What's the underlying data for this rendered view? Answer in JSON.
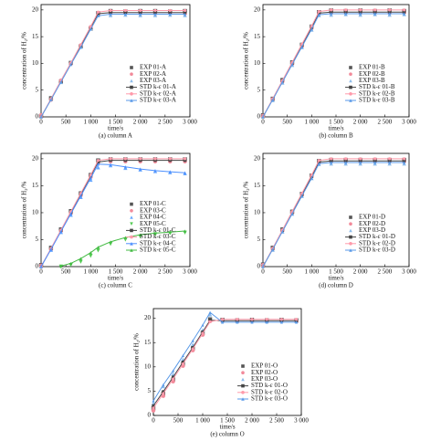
{
  "chart_data": [
    {
      "type": "line",
      "caption": "(a) column A",
      "xlabel": "time/s",
      "ylabel": "concentration of H₂/%",
      "xlim": [
        0,
        3000
      ],
      "ylim": [
        0,
        21
      ],
      "legend": "lower right",
      "grid": false,
      "xticks": [
        0,
        500,
        {
          "value": 1000,
          "label": "1 000"
        },
        {
          "value": 1500,
          "label": "1 500"
        },
        {
          "value": 2000,
          "label": "2 000"
        },
        {
          "value": 2500,
          "label": "2 500"
        },
        {
          "value": 3000,
          "label": "3 000"
        }
      ],
      "yticks": [
        0,
        5,
        10,
        15,
        20
      ],
      "x": [
        0,
        200,
        400,
        600,
        800,
        1000,
        1150,
        1400,
        1700,
        2000,
        2300,
        2600,
        2900
      ],
      "series": [
        {
          "name": "EXP 01-A",
          "color": "#555555",
          "marker": "square",
          "line": false,
          "values": [
            0.2,
            3.5,
            6.6,
            10.1,
            13.2,
            16.5,
            19.4,
            19.8,
            19.7,
            19.8,
            19.8,
            19.7,
            19.8
          ]
        },
        {
          "name": "EXP 02-A",
          "color": "#f28a9a",
          "marker": "circle",
          "line": false,
          "values": [
            0.3,
            3.2,
            6.8,
            9.9,
            13.4,
            16.8,
            19.1,
            19.3,
            19.4,
            19.3,
            19.3,
            19.4,
            19.3
          ]
        },
        {
          "name": "EXP 03-A",
          "color": "#8fbcea",
          "marker": "triangle",
          "line": false,
          "values": [
            0.1,
            3.4,
            6.5,
            10.2,
            13.1,
            16.6,
            19.0,
            19.0,
            19.1,
            19.0,
            19.0,
            19.1,
            19.0
          ]
        },
        {
          "name": "STD k-ε 01-A",
          "color": "#444444",
          "marker": "square",
          "line": true,
          "values": [
            0,
            3.3,
            6.7,
            10.0,
            13.3,
            16.7,
            19.3,
            19.5,
            19.5,
            19.5,
            19.5,
            19.5,
            19.5
          ]
        },
        {
          "name": "STD k-ε 02-A",
          "color": "#ff9aaa",
          "marker": "circle",
          "line": true,
          "values": [
            0,
            3.4,
            6.8,
            10.1,
            13.5,
            16.9,
            19.6,
            19.9,
            19.9,
            19.9,
            19.9,
            19.9,
            19.9
          ]
        },
        {
          "name": "STD k-ε 03-A",
          "color": "#5a9ae8",
          "marker": "triangle",
          "line": true,
          "values": [
            0,
            3.2,
            6.5,
            9.8,
            13.0,
            16.4,
            18.9,
            19.2,
            19.2,
            19.2,
            19.2,
            19.2,
            19.2
          ]
        }
      ]
    },
    {
      "type": "line",
      "caption": "(b) column B",
      "xlabel": "time/s",
      "ylabel": "concentration of H₂/%",
      "xlim": [
        0,
        3000
      ],
      "ylim": [
        0,
        21
      ],
      "legend": "lower right",
      "grid": false,
      "xticks": [
        0,
        500,
        {
          "value": 1000,
          "label": "1 000"
        },
        {
          "value": 1500,
          "label": "1 500"
        },
        {
          "value": 2000,
          "label": "2 000"
        },
        {
          "value": 2500,
          "label": "2 500"
        },
        {
          "value": 3000,
          "label": "3 000"
        }
      ],
      "yticks": [
        0,
        5,
        10,
        15,
        20
      ],
      "x": [
        0,
        200,
        400,
        600,
        800,
        1000,
        1150,
        1400,
        1700,
        2000,
        2300,
        2600,
        2900
      ],
      "series": [
        {
          "name": "EXP 01-B",
          "color": "#555555",
          "marker": "square",
          "line": false,
          "values": [
            0.3,
            3.4,
            6.9,
            10.2,
            13.5,
            16.9,
            19.6,
            19.9,
            19.8,
            19.9,
            19.8,
            19.9,
            19.8
          ]
        },
        {
          "name": "EXP 02-B",
          "color": "#f28a9a",
          "marker": "circle",
          "line": false,
          "values": [
            0.2,
            3.3,
            6.6,
            9.9,
            13.2,
            16.6,
            19.3,
            19.4,
            19.5,
            19.4,
            19.5,
            19.4,
            19.5
          ]
        },
        {
          "name": "EXP 03-B",
          "color": "#8fbcea",
          "marker": "triangle",
          "line": false,
          "values": [
            0.1,
            3.1,
            6.4,
            9.7,
            13.0,
            16.3,
            19.0,
            19.1,
            19.2,
            19.1,
            19.2,
            19.1,
            19.2
          ]
        },
        {
          "name": "STD k-ε 01-B",
          "color": "#444444",
          "marker": "square",
          "line": true,
          "values": [
            0,
            3.3,
            6.7,
            10.0,
            13.3,
            16.7,
            19.4,
            19.6,
            19.6,
            19.6,
            19.6,
            19.6,
            19.6
          ]
        },
        {
          "name": "STD k-ε 02-B",
          "color": "#ff9aaa",
          "marker": "circle",
          "line": true,
          "values": [
            0,
            3.4,
            6.8,
            10.2,
            13.6,
            17.0,
            19.7,
            20.0,
            20.0,
            20.0,
            20.0,
            20.0,
            20.0
          ]
        },
        {
          "name": "STD k-ε 03-B",
          "color": "#5a9ae8",
          "marker": "triangle",
          "line": true,
          "values": [
            0,
            3.2,
            6.5,
            9.8,
            13.1,
            16.4,
            19.1,
            19.3,
            19.3,
            19.3,
            19.3,
            19.3,
            19.3
          ]
        }
      ]
    },
    {
      "type": "line",
      "caption": "(c) column C",
      "xlabel": "time/s",
      "ylabel": "concentration of H₂/%",
      "xlim": [
        0,
        3000
      ],
      "ylim": [
        0,
        21
      ],
      "legend": "lower right",
      "grid": false,
      "xticks": [
        0,
        500,
        {
          "value": 1000,
          "label": "1 000"
        },
        {
          "value": 1500,
          "label": "1 500"
        },
        {
          "value": 2000,
          "label": "2 000"
        },
        {
          "value": 2500,
          "label": "2 500"
        },
        {
          "value": 3000,
          "label": "3 000"
        }
      ],
      "yticks": [
        0,
        5,
        10,
        15,
        20
      ],
      "x": [
        0,
        200,
        400,
        600,
        800,
        1000,
        1150,
        1400,
        1700,
        2000,
        2300,
        2600,
        2900
      ],
      "series": [
        {
          "name": "EXP 01-C",
          "color": "#555555",
          "marker": "square",
          "line": false,
          "values": [
            0.3,
            3.5,
            6.9,
            10.3,
            13.6,
            17.0,
            19.7,
            19.9,
            19.9,
            19.9,
            19.9,
            19.9,
            19.9
          ]
        },
        {
          "name": "EXP 03-C",
          "color": "#f28a9a",
          "marker": "circle",
          "line": false,
          "values": [
            0.2,
            3.2,
            6.6,
            9.9,
            13.2,
            16.6,
            19.3,
            19.5,
            19.5,
            19.5,
            19.5,
            19.5,
            19.5
          ]
        },
        {
          "name": "EXP 04-C",
          "color": "#6aa9ff",
          "marker": "triangle",
          "line": false,
          "values": [
            0.1,
            3.1,
            6.4,
            9.6,
            12.9,
            16.1,
            18.4,
            18.8,
            18.3,
            18.0,
            17.7,
            17.5,
            17.3
          ]
        },
        {
          "name": "EXP 05-C",
          "color": "#55cc55",
          "marker": "triangle-down",
          "line": false,
          "values": [
            null,
            null,
            0,
            0.3,
            0.9,
            2.0,
            3.0,
            4.2,
            5.0,
            5.6,
            6.0,
            6.2,
            6.3
          ]
        },
        {
          "name": "STD k-ε 01-C",
          "color": "#444444",
          "marker": "square",
          "line": true,
          "values": [
            0,
            3.3,
            6.7,
            10.0,
            13.4,
            16.8,
            19.4,
            19.7,
            19.7,
            19.7,
            19.7,
            19.7,
            19.7
          ]
        },
        {
          "name": "STD k-ε 03-C",
          "color": "#ff9aaa",
          "marker": "circle",
          "line": true,
          "values": [
            0,
            3.4,
            6.8,
            10.2,
            13.6,
            17.0,
            19.7,
            20.0,
            20.0,
            20.0,
            20.0,
            20.0,
            20.0
          ]
        },
        {
          "name": "STD k-ε 04-C",
          "color": "#4d90fe",
          "marker": "triangle",
          "line": true,
          "values": [
            0,
            3.2,
            6.5,
            9.8,
            13.1,
            16.4,
            19.0,
            18.9,
            18.5,
            18.1,
            17.8,
            17.6,
            17.4
          ]
        },
        {
          "name": "STD k-ε 05-C",
          "color": "#44bb44",
          "marker": "triangle",
          "line": true,
          "values": [
            null,
            null,
            0.1,
            0.6,
            1.5,
            2.6,
            3.6,
            4.6,
            5.4,
            5.9,
            6.2,
            6.4,
            6.6
          ]
        }
      ]
    },
    {
      "type": "line",
      "caption": "(d) column D",
      "xlabel": "time/s",
      "ylabel": "concentration of H₂/%",
      "xlim": [
        0,
        3000
      ],
      "ylim": [
        0,
        21
      ],
      "legend": "lower right",
      "grid": false,
      "xticks": [
        0,
        500,
        {
          "value": 1000,
          "label": "1 000"
        },
        {
          "value": 1500,
          "label": "1 500"
        },
        {
          "value": 2000,
          "label": "2 000"
        },
        {
          "value": 2500,
          "label": "2 500"
        },
        {
          "value": 3000,
          "label": "3 000"
        }
      ],
      "yticks": [
        0,
        5,
        10,
        15,
        20
      ],
      "x": [
        0,
        200,
        400,
        600,
        800,
        1000,
        1150,
        1400,
        1700,
        2000,
        2300,
        2600,
        2900
      ],
      "series": [
        {
          "name": "EXP 01-D",
          "color": "#555555",
          "marker": "square",
          "line": false,
          "values": [
            0.4,
            3.5,
            6.9,
            10.2,
            13.5,
            16.9,
            19.6,
            19.8,
            19.8,
            19.8,
            19.8,
            19.8,
            19.8
          ]
        },
        {
          "name": "EXP 02-D",
          "color": "#f28a9a",
          "marker": "circle",
          "line": false,
          "values": [
            0.3,
            3.3,
            6.7,
            10.0,
            13.3,
            16.7,
            19.3,
            19.5,
            19.5,
            19.5,
            19.5,
            19.5,
            19.5
          ]
        },
        {
          "name": "EXP 03-D",
          "color": "#8fbcea",
          "marker": "triangle",
          "line": false,
          "values": [
            0.2,
            3.1,
            6.5,
            9.8,
            13.1,
            16.4,
            19.0,
            19.1,
            19.1,
            19.1,
            19.1,
            19.1,
            19.1
          ]
        },
        {
          "name": "STD k-ε 01-D",
          "color": "#444444",
          "marker": "square",
          "line": true,
          "values": [
            0,
            3.3,
            6.7,
            10.0,
            13.3,
            16.7,
            19.4,
            19.6,
            19.6,
            19.6,
            19.6,
            19.6,
            19.6
          ]
        },
        {
          "name": "STD k-ε 02-D",
          "color": "#ff9aaa",
          "marker": "circle",
          "line": true,
          "values": [
            0,
            3.4,
            6.8,
            10.2,
            13.6,
            17.0,
            19.7,
            20.0,
            20.0,
            20.0,
            20.0,
            20.0,
            20.0
          ]
        },
        {
          "name": "STD k-ε 03-D",
          "color": "#5a9ae8",
          "marker": "triangle",
          "line": true,
          "values": [
            0,
            3.2,
            6.5,
            9.8,
            13.1,
            16.4,
            19.1,
            19.3,
            19.3,
            19.3,
            19.3,
            19.3,
            19.3
          ]
        }
      ]
    },
    {
      "type": "line",
      "caption": "(e) column O",
      "xlabel": "time/s",
      "ylabel": "concentration of H₂/%",
      "xlim": [
        0,
        3000
      ],
      "ylim": [
        0,
        22
      ],
      "legend": "lower right",
      "grid": false,
      "xticks": [
        0,
        500,
        {
          "value": 1000,
          "label": "1 000"
        },
        {
          "value": 1500,
          "label": "1 500"
        },
        {
          "value": 2000,
          "label": "2 000"
        },
        {
          "value": 2500,
          "label": "2 500"
        },
        {
          "value": 3000,
          "label": "3 000"
        }
      ],
      "yticks": [
        0,
        5,
        10,
        15,
        20
      ],
      "x": [
        0,
        200,
        400,
        600,
        800,
        1000,
        1150,
        1400,
        1700,
        2000,
        2300,
        2600,
        2900
      ],
      "series": [
        {
          "name": "EXP 01-O",
          "color": "#555555",
          "marker": "square",
          "line": false,
          "values": [
            1.5,
            4.5,
            7.4,
            10.6,
            13.8,
            17.0,
            19.8,
            19.7,
            19.6,
            19.7,
            19.6,
            19.7,
            19.6
          ]
        },
        {
          "name": "EXP 02-O",
          "color": "#f28a9a",
          "marker": "circle",
          "line": false,
          "values": [
            1.0,
            4.0,
            7.0,
            10.2,
            13.4,
            16.6,
            19.4,
            19.4,
            19.3,
            19.4,
            19.3,
            19.4,
            19.3
          ]
        },
        {
          "name": "EXP 03-O",
          "color": "#8fbcea",
          "marker": "triangle",
          "line": false,
          "values": [
            2.5,
            6.0,
            8.5,
            11.5,
            14.6,
            17.6,
            20.8,
            19.5,
            19.4,
            19.5,
            19.4,
            19.5,
            19.4
          ]
        },
        {
          "name": "STD k-ε 01-O",
          "color": "#444444",
          "marker": "square",
          "line": true,
          "values": [
            2.0,
            4.9,
            7.9,
            11.0,
            14.0,
            17.2,
            19.6,
            19.5,
            19.5,
            19.5,
            19.5,
            19.5,
            19.5
          ]
        },
        {
          "name": "STD k-ε 02-O",
          "color": "#ff9aaa",
          "marker": "circle",
          "line": true,
          "values": [
            1.5,
            4.5,
            7.5,
            10.6,
            13.7,
            16.9,
            19.3,
            19.8,
            19.8,
            19.8,
            19.8,
            19.8,
            19.8
          ]
        },
        {
          "name": "STD k-ε 03-O",
          "color": "#5a9ae8",
          "marker": "triangle",
          "line": true,
          "values": [
            3.0,
            6.3,
            9.2,
            12.3,
            15.4,
            18.6,
            21.2,
            19.2,
            19.2,
            19.2,
            19.2,
            19.2,
            19.2
          ]
        }
      ]
    }
  ]
}
